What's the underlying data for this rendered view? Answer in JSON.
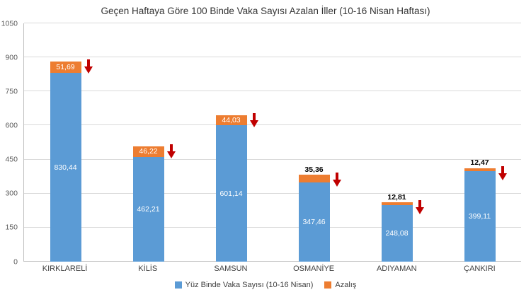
{
  "chart_data": {
    "type": "bar",
    "stacked": true,
    "title": "Geçen Haftaya Göre 100 Binde Vaka Sayısı Azalan İller (10-16 Nisan Haftası)",
    "categories": [
      "KIRKLARELİ",
      "KİLİS",
      "SAMSUN",
      "OSMANİYE",
      "ADIYAMAN",
      "ÇANKIRI"
    ],
    "series": [
      {
        "name": "Yüz Binde Vaka Sayısı (10-16 Nisan)",
        "color": "#5b9bd5",
        "values": [
          830.44,
          462.21,
          601.14,
          347.46,
          248.08,
          399.11
        ],
        "labels": [
          "830,44",
          "462,21",
          "601,14",
          "347,46",
          "248,08",
          "399,11"
        ]
      },
      {
        "name": "Azalış",
        "color": "#ed7d31",
        "values": [
          51.69,
          46.22,
          44.03,
          35.36,
          12.81,
          12.47
        ],
        "labels": [
          "51,69",
          "46,22",
          "44,03",
          "35,36",
          "12,81",
          "12,47"
        ]
      }
    ],
    "ylim": [
      0,
      1050
    ],
    "yticks": [
      0,
      150,
      300,
      450,
      600,
      750,
      900,
      1050
    ],
    "grid": true,
    "legend_position": "bottom",
    "annotation_arrow_color": "#c00000",
    "annotation_meaning": "decrease arrow"
  }
}
